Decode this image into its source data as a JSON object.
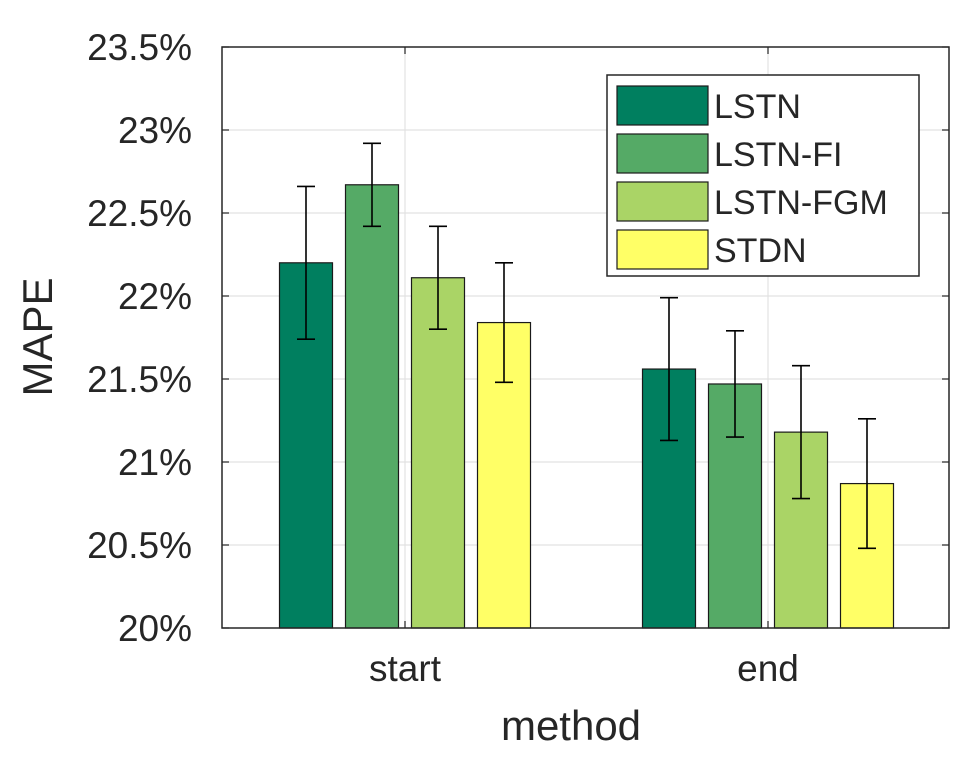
{
  "chart_data": {
    "type": "bar",
    "title": "",
    "xlabel": "method",
    "ylabel": "MAPE",
    "categories": [
      "start",
      "end"
    ],
    "ylim": [
      20,
      23.5
    ],
    "yticks": [
      20,
      20.5,
      21,
      21.5,
      22,
      22.5,
      23,
      23.5
    ],
    "ytick_labels": [
      "20%",
      "20.5%",
      "21%",
      "21.5%",
      "22%",
      "22.5%",
      "23%",
      "23.5%"
    ],
    "grid": true,
    "legend_position": "top-right",
    "series": [
      {
        "name": "LSTN",
        "color": "#007f5f",
        "values": [
          22.2,
          21.56
        ],
        "err_low": [
          21.74,
          21.13
        ],
        "err_high": [
          22.66,
          21.99
        ]
      },
      {
        "name": "LSTN-FI",
        "color": "#55aa66",
        "values": [
          22.67,
          21.47
        ],
        "err_low": [
          22.42,
          21.15
        ],
        "err_high": [
          22.92,
          21.79
        ]
      },
      {
        "name": "LSTN-FGM",
        "color": "#aad466",
        "values": [
          22.11,
          21.18
        ],
        "err_low": [
          21.8,
          20.78
        ],
        "err_high": [
          22.42,
          21.58
        ]
      },
      {
        "name": "STDN",
        "color": "#ffff66",
        "values": [
          21.84,
          20.87
        ],
        "err_low": [
          21.48,
          20.48
        ],
        "err_high": [
          22.2,
          21.26
        ]
      }
    ]
  }
}
